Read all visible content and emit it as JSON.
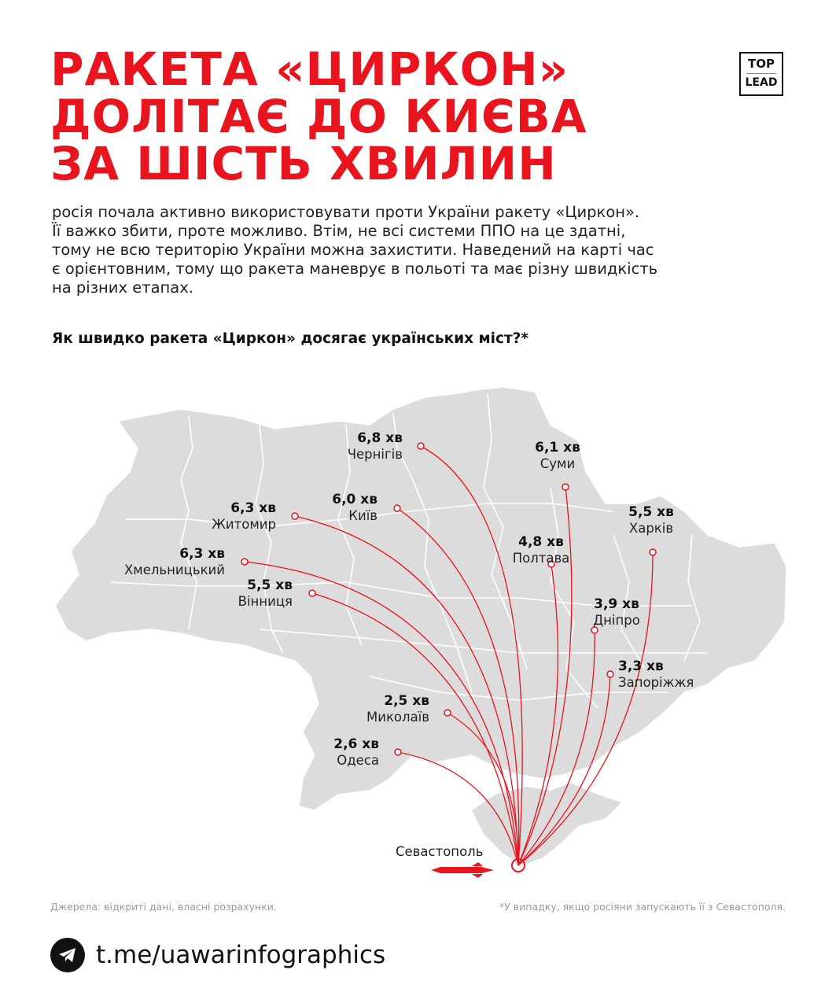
{
  "title": {
    "line1": "РАКЕТА «ЦИРКОН»",
    "line2": "ДОЛІТАЄ ДО КИЄВА",
    "line3": "ЗА ШІСТЬ ХВИЛИН"
  },
  "logo": {
    "top": "TOP",
    "bottom": "LEAD"
  },
  "intro": {
    "line1": "росія почала активно використовувати проти України ракету «Циркон».",
    "line2": "Її важко збити, проте можливо. Втім, не всі системи ППО на це здатні,",
    "line3": "тому не всю територію України можна захистити. Наведений на карті час",
    "line4": "є орієнтовним, тому що ракета маневрує в польоті та має різну швидкість",
    "line5": "на різних етапах."
  },
  "question": "Як швидко ракета «Циркон» досягає українських міст?*",
  "launch_city": "Севастополь",
  "cities": [
    {
      "name": "Чернігів",
      "time": "6,8 хв"
    },
    {
      "name": "Суми",
      "time": "6,1 хв"
    },
    {
      "name": "Житомир",
      "time": "6,3 хв"
    },
    {
      "name": "Київ",
      "time": "6,0 хв"
    },
    {
      "name": "Харків",
      "time": "5,5 хв"
    },
    {
      "name": "Полтава",
      "time": "4,8 хв"
    },
    {
      "name": "Хмельницький",
      "time": "6,3 хв"
    },
    {
      "name": "Вінниця",
      "time": "5,5 хв"
    },
    {
      "name": "Дніпро",
      "time": "3,9 хв"
    },
    {
      "name": "Запоріжжя",
      "time": "3,3 хв"
    },
    {
      "name": "Миколаїв",
      "time": "2,5 хв"
    },
    {
      "name": "Одеса",
      "time": "2,6 хв"
    }
  ],
  "colors": {
    "accent": "#e8141e",
    "map_fill": "#dcdcdc",
    "route": "#e8141e"
  },
  "footer": {
    "sources": "Джерела: відкриті дані, власні розрахунки.",
    "note": "*У випадку, якщо росіяни запускають її з Севастополя."
  },
  "telegram": {
    "icon": "telegram-icon",
    "link": "t.me/uawarinfographics"
  }
}
